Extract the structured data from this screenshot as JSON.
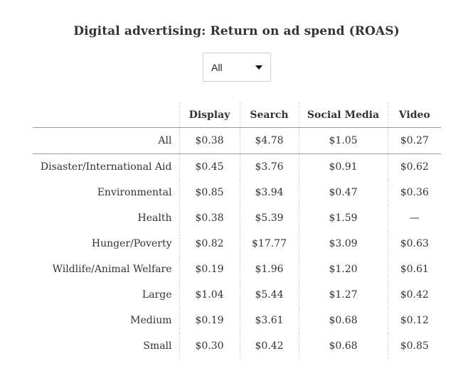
{
  "title": "Digital advertising: Return on ad spend (ROAS)",
  "filter": {
    "selected": "All"
  },
  "table": {
    "columns": [
      "Display",
      "Search",
      "Social Media",
      "Video"
    ],
    "rows": [
      {
        "label": "All",
        "values": [
          "$0.38",
          "$4.78",
          "$1.05",
          "$0.27"
        ]
      },
      {
        "label": "Disaster/International Aid",
        "values": [
          "$0.45",
          "$3.76",
          "$0.91",
          "$0.62"
        ]
      },
      {
        "label": "Environmental",
        "values": [
          "$0.85",
          "$3.94",
          "$0.47",
          "$0.36"
        ]
      },
      {
        "label": "Health",
        "values": [
          "$0.38",
          "$5.39",
          "$1.59",
          "—"
        ]
      },
      {
        "label": "Hunger/Poverty",
        "values": [
          "$0.82",
          "$17.77",
          "$3.09",
          "$0.63"
        ]
      },
      {
        "label": "Wildlife/Animal Welfare",
        "values": [
          "$0.19",
          "$1.96",
          "$1.20",
          "$0.61"
        ]
      },
      {
        "label": "Large",
        "values": [
          "$1.04",
          "$5.44",
          "$1.27",
          "$0.42"
        ]
      },
      {
        "label": "Medium",
        "values": [
          "$0.19",
          "$3.61",
          "$0.68",
          "$0.12"
        ]
      },
      {
        "label": "Small",
        "values": [
          "$0.30",
          "$0.42",
          "$0.68",
          "$0.85"
        ]
      }
    ]
  },
  "colors": {
    "text": "#333333",
    "rule": "#9a9a9a",
    "dashed_divider": "#d6d6d6"
  }
}
